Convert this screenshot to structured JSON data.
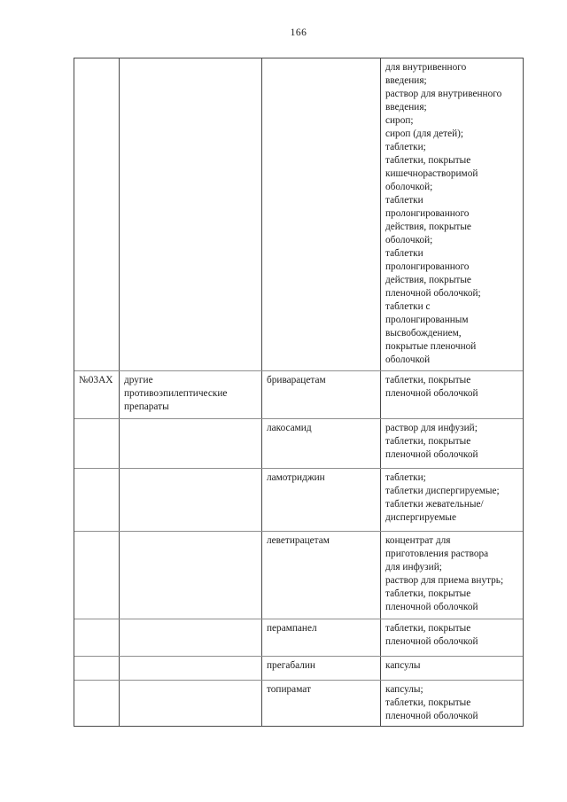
{
  "page": {
    "number": "166"
  },
  "colors": {
    "paper": "#ffffff",
    "ink": "#1a1a1a",
    "grid_dark": "#4a4a4a",
    "grid_light": "#8f8f8f"
  },
  "table": {
    "rows": [
      {
        "code": "",
        "group": "",
        "drug": "",
        "forms": "для внутривенного\nвведения;\nраствор для внутривенного\nвведения;\nсироп;\nсироп (для детей);\nтаблетки;\nтаблетки, покрытые\nкишечнорастворимой\nоболочкой;\nтаблетки\nпролонгированного\nдействия, покрытые\nоболочкой;\nтаблетки\nпролонгированного\nдействия, покрытые\nпленочной оболочкой;\nтаблетки с\nпролонгированным\nвысвобождением,\nпокрытые пленочной\nоболочкой"
      },
      {
        "code": "№03AX",
        "group": "другие\nпротивоэпилептические\nпрепараты",
        "drug": "бриварацетам",
        "forms": "таблетки, покрытые\nпленочной оболочкой"
      },
      {
        "code": "",
        "group": "",
        "drug": "лакосамид",
        "forms": "раствор для инфузий;\nтаблетки, покрытые\nпленочной оболочкой"
      },
      {
        "code": "",
        "group": "",
        "drug": "ламотриджин",
        "forms": "таблетки;\nтаблетки диспергируемые;\nтаблетки жевательные/\nдиспергируемые"
      },
      {
        "code": "",
        "group": "",
        "drug": "леветирацетам",
        "forms": "концентрат для\nприготовления раствора\nдля инфузий;\nраствор для приема внутрь;\nтаблетки, покрытые\nпленочной оболочкой"
      },
      {
        "code": "",
        "group": "",
        "drug": "перампанел",
        "forms": "таблетки, покрытые\nпленочной оболочкой"
      },
      {
        "code": "",
        "group": "",
        "drug": "прегабалин",
        "forms": "капсулы"
      },
      {
        "code": "",
        "group": "",
        "drug": "топирамат",
        "forms": "капсулы;\nтаблетки, покрытые\nпленочной оболочкой"
      }
    ]
  }
}
